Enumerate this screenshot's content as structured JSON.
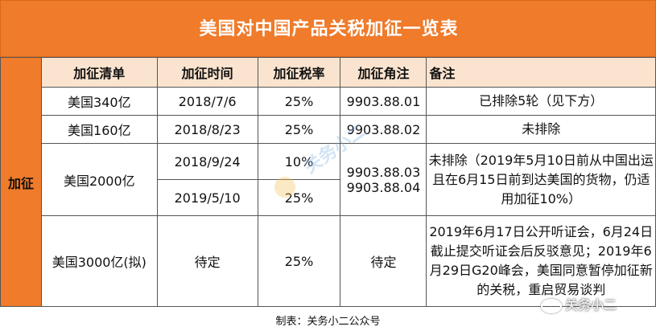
{
  "title": "美国对中国产品关税加征一览表",
  "side_label": "加征",
  "headers": [
    "加征清单",
    "加征时间",
    "加征税率",
    "加征角注",
    "备注"
  ],
  "rows": {
    "r1": {
      "list": "美国340亿",
      "date": "2018/7/6",
      "rate": "25%",
      "code": "9903.88.01",
      "note": "已排除5轮（见下方）"
    },
    "r2": {
      "list": "美国160亿",
      "date": "2018/8/23",
      "rate": "25%",
      "code": "9903.88.02",
      "note": "未排除"
    },
    "r3": {
      "list": "美国2000亿",
      "date1": "2018/9/24",
      "rate1": "10%",
      "date2": "2019/5/10",
      "rate2": "25%",
      "code1": "9903.88.03",
      "code2": "9903.88.04",
      "note": "未排除（2019年5月10日前从中国出运且在6月15日前到达美国的货物，仍适用加征10%）"
    },
    "r4": {
      "list": "美国3000亿(拟)",
      "date": "待定",
      "rate": "25%",
      "code": "待定",
      "note": "2019年6月17日公开听证会，6月24日截止提交听证会后反驳意见；2019年6月29日G20峰会，美国同意暂停加征新的关税，重启贸易谈判"
    }
  },
  "watermark_text": "关务小二",
  "footer": "制表：关务小二公众号",
  "badge_text": "关务小二",
  "colors": {
    "orange": "#ef7b2b",
    "header_bg": "#fbe4cf"
  }
}
